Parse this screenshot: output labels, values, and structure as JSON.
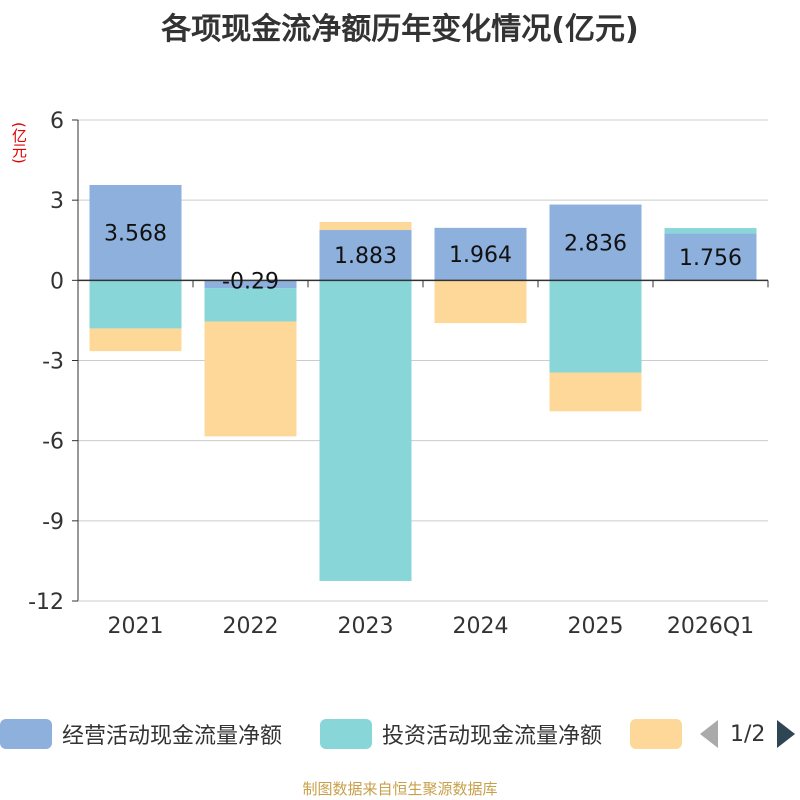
{
  "chart_data": {
    "type": "bar",
    "stacked": true,
    "title": "各项现金流净额历年变化情况(亿元)",
    "ylabel": "(亿元)",
    "ylim": [
      -12,
      6
    ],
    "yticks": [
      6,
      3,
      0,
      -3,
      -6,
      -9,
      -12
    ],
    "ytick_labels": [
      "6",
      "3",
      "0",
      "-3",
      "-6",
      "-9",
      "-12"
    ],
    "categories": [
      "2021",
      "2022",
      "2023",
      "2024",
      "2025",
      "2026Q1"
    ],
    "series": [
      {
        "name": "经营活动现金流量净额",
        "color": "#8eb0dd",
        "values": [
          3.568,
          -0.29,
          1.883,
          1.964,
          2.836,
          1.756
        ],
        "labels": [
          "3.568",
          "-0.29",
          "1.883",
          "1.964",
          "2.836",
          "1.756"
        ]
      },
      {
        "name": "投资活动现金流量净额",
        "color": "#88d6d8",
        "values": [
          -1.8,
          -1.25,
          -11.25,
          0,
          -3.45,
          0.2
        ]
      },
      {
        "name": "",
        "color": "#fdd898",
        "values": [
          -0.85,
          -4.3,
          0.3,
          -1.6,
          -1.45,
          0
        ]
      }
    ],
    "legend_position": "bottom",
    "grid": true
  },
  "legend": {
    "page_text": "1/2"
  },
  "source": "制图数据来自恒生聚源数据库"
}
